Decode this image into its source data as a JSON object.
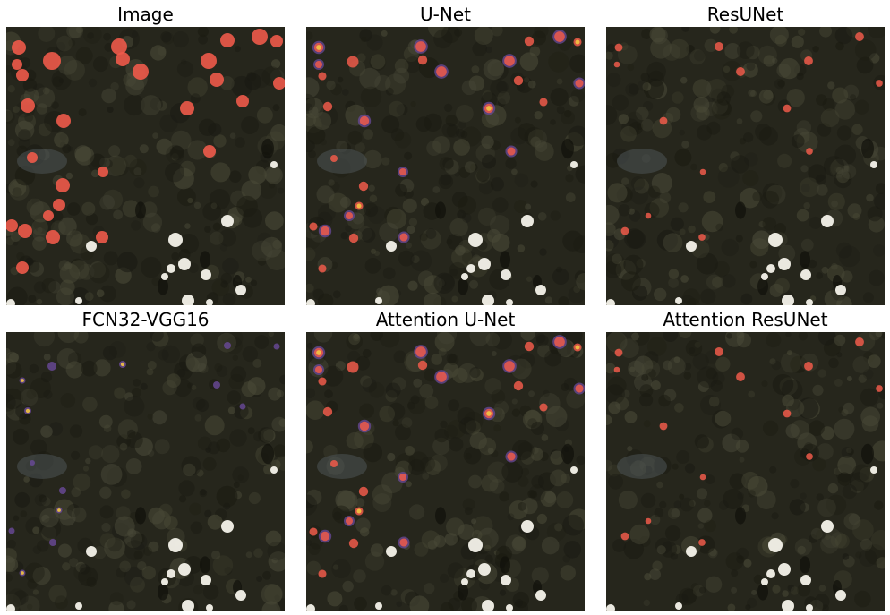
{
  "figure": {
    "panels": [
      {
        "title": "Image",
        "kind": "source"
      },
      {
        "title": "U-Net",
        "kind": "prediction"
      },
      {
        "title": "ResUNet",
        "kind": "prediction"
      },
      {
        "title": "FCN32-VGG16",
        "kind": "prediction"
      },
      {
        "title": "Attention U-Net",
        "kind": "prediction"
      },
      {
        "title": "Attention ResUNet",
        "kind": "prediction"
      }
    ],
    "colors": {
      "vegetation_dark": "#26261c",
      "vegetation_light": "#4a4a38",
      "marker_red": "#ee5a4a",
      "overlay_purple": "#6a4a9a",
      "overlay_yellow": "#f2c542",
      "bright_object": "#f4f2ea"
    }
  }
}
